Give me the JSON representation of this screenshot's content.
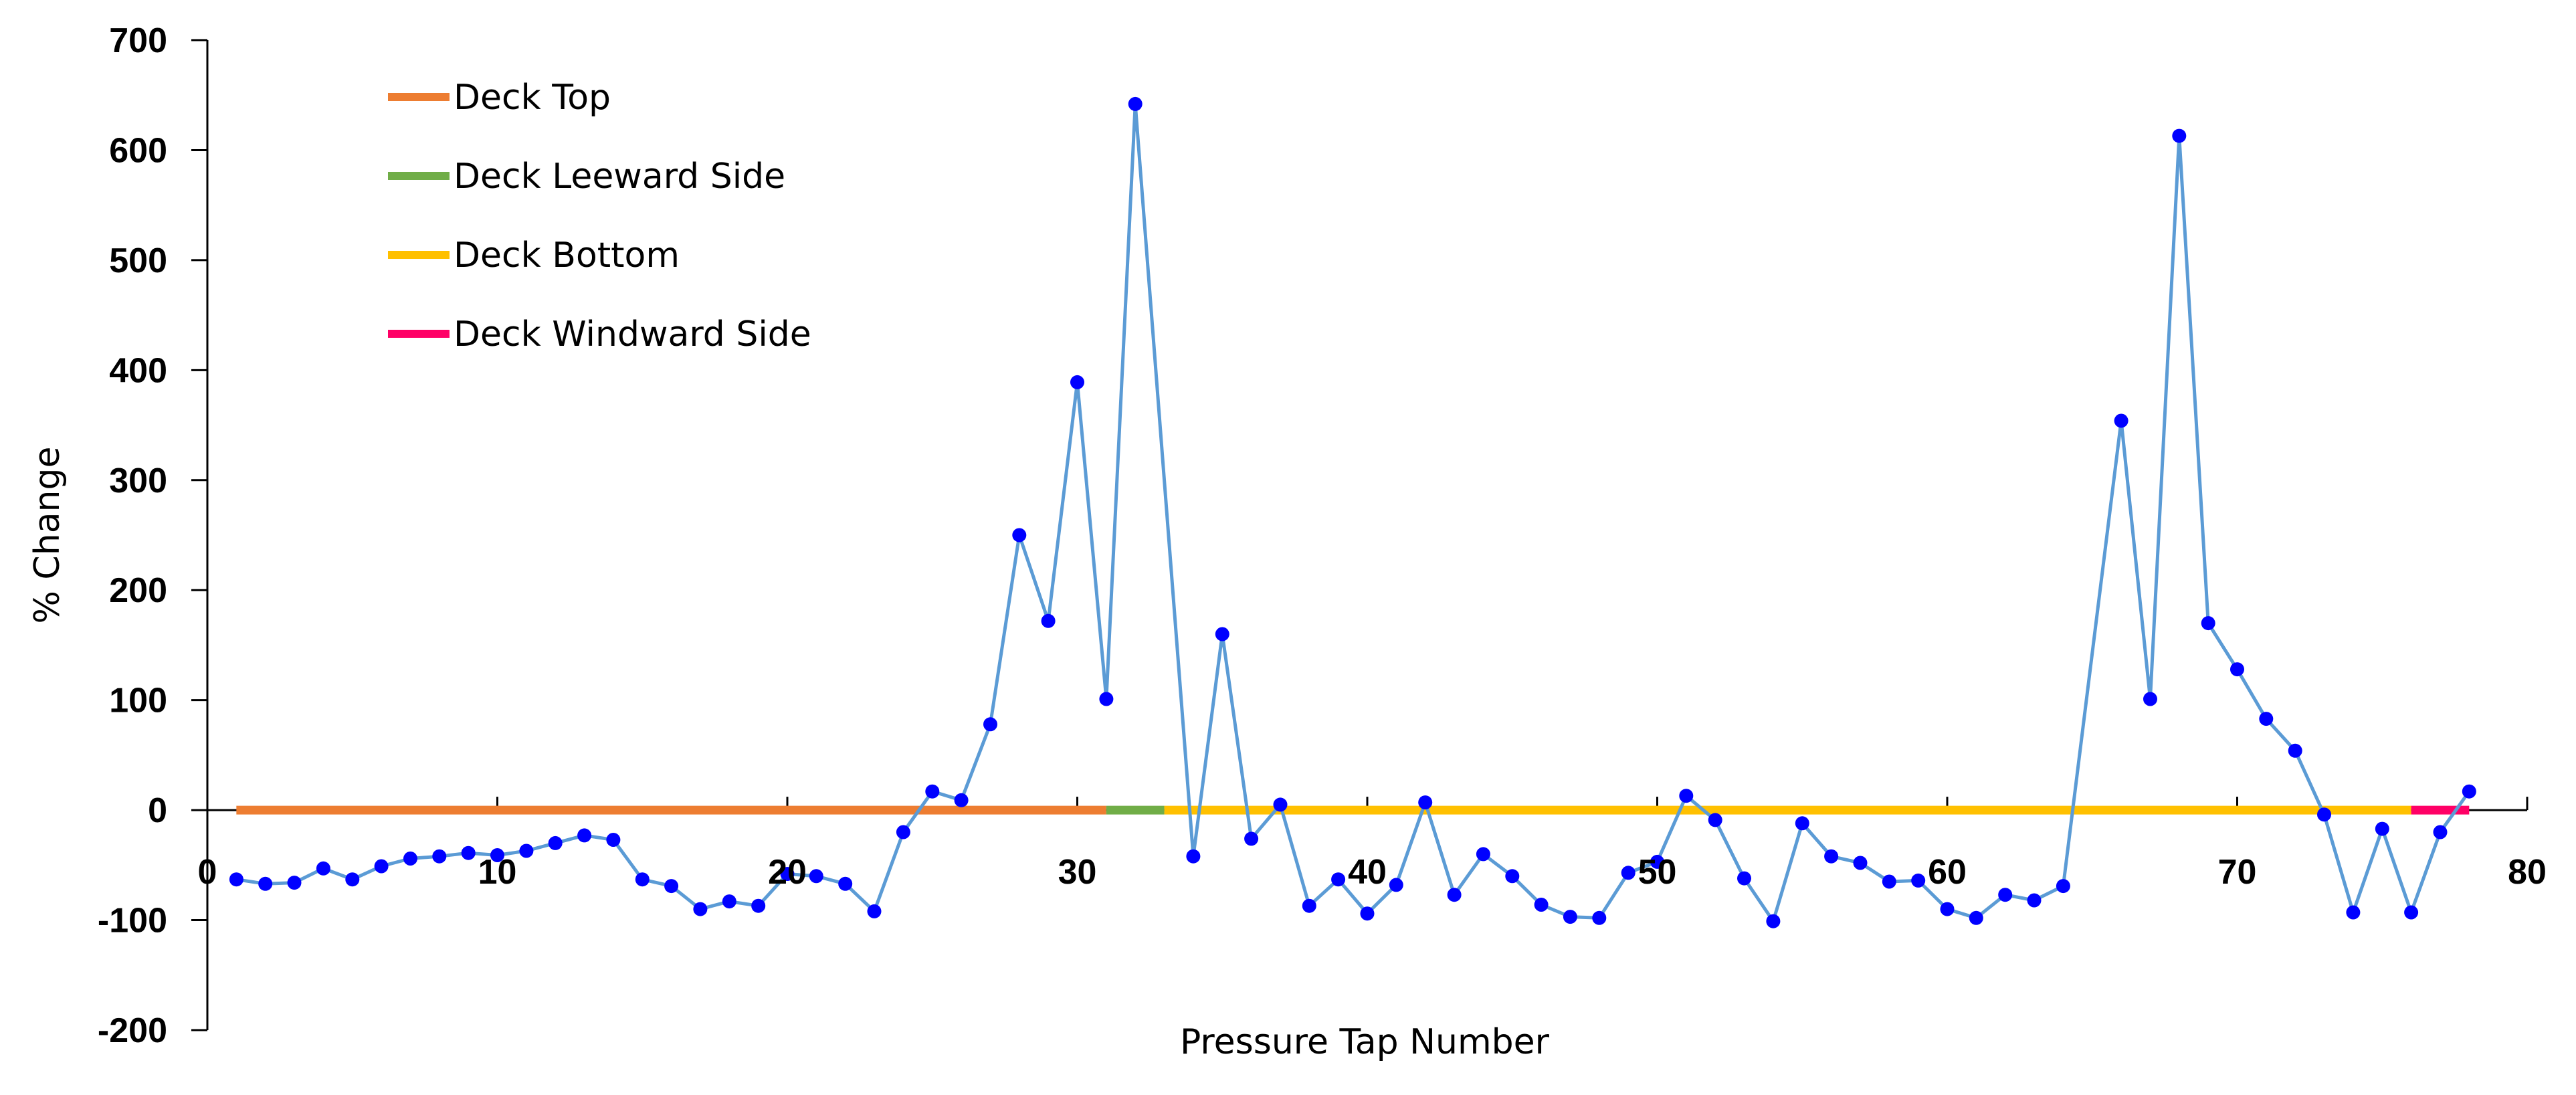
{
  "chart_data": {
    "type": "line",
    "title": "",
    "xlabel": "Pressure Tap Number",
    "ylabel": "% Change",
    "xlim": [
      0,
      80
    ],
    "ylim": [
      -200,
      700
    ],
    "x_ticks": [
      0,
      10,
      20,
      30,
      40,
      50,
      60,
      70,
      80
    ],
    "x_tick_labels": [
      "0",
      "10",
      "20",
      "30",
      "40",
      "50",
      "60",
      "70",
      "80"
    ],
    "y_ticks": [
      -200,
      -100,
      0,
      100,
      200,
      300,
      400,
      500,
      600,
      700
    ],
    "y_tick_labels": [
      "-200",
      "-100",
      "0",
      "100",
      "200",
      "300",
      "400",
      "500",
      "600",
      "700"
    ],
    "grid": false,
    "legend_position": "top-left",
    "series": [
      {
        "name": "",
        "color": "#5B9BD5",
        "marker_color": "#0000FF",
        "x": [
          1,
          2,
          3,
          4,
          5,
          6,
          7,
          8,
          9,
          10,
          11,
          12,
          13,
          14,
          15,
          16,
          17,
          18,
          19,
          20,
          21,
          22,
          23,
          24,
          25,
          26,
          27,
          28,
          29,
          30,
          31,
          32,
          33,
          34,
          35,
          36,
          37,
          38,
          39,
          40,
          41,
          42,
          43,
          44,
          45,
          46,
          47,
          48,
          49,
          50,
          51,
          52,
          53,
          54,
          55,
          56,
          57,
          58,
          59,
          60,
          61,
          62,
          63,
          64,
          65,
          66,
          67,
          68,
          69,
          70,
          71,
          72,
          73,
          74,
          75,
          76,
          77,
          78
        ],
        "y": [
          -63,
          -67,
          -66,
          -53,
          -63,
          -51,
          -44,
          -42,
          -39,
          -41,
          -37,
          -30,
          -23,
          -27,
          -63,
          -69,
          -90,
          -83,
          -87,
          -58,
          -60,
          -67,
          -92,
          -20,
          17,
          9,
          78,
          250,
          172,
          389,
          101,
          642,
          null,
          -42,
          160,
          -26,
          5,
          -87,
          -63,
          -94,
          -68,
          7,
          -77,
          -40,
          -60,
          -86,
          -97,
          -98,
          -57,
          -47,
          13,
          -9,
          -62,
          -101,
          -12,
          -42,
          -48,
          -65,
          -64,
          -90,
          -98,
          -77,
          -82,
          -69,
          null,
          354,
          101,
          613,
          170,
          128,
          83,
          54,
          -4,
          -93,
          -17,
          -93,
          -20,
          17
        ]
      }
    ],
    "segments": [
      {
        "name": "Deck Top",
        "color": "#ED7D31",
        "x_start": 1,
        "x_end": 31,
        "y": 0
      },
      {
        "name": "Deck Leeward Side",
        "color": "#70AD47",
        "x_start": 31,
        "x_end": 33,
        "y": 0
      },
      {
        "name": "Deck Bottom",
        "color": "#FFC000",
        "x_start": 33,
        "x_end": 76,
        "y": 0
      },
      {
        "name": "Deck Windward Side",
        "color": "#FF0066",
        "x_start": 76,
        "x_end": 78,
        "y": 0
      }
    ]
  }
}
